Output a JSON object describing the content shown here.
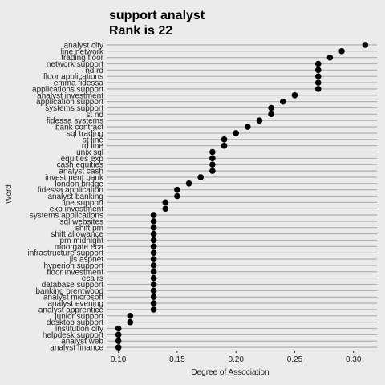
{
  "chart_data": {
    "type": "scatter",
    "title": "support analyst",
    "subtitle": "Rank is 22",
    "xlabel": "Degree of Association",
    "ylabel": "Word",
    "xlim": [
      0.09,
      0.32
    ],
    "xticks": [
      "0.10",
      "0.15",
      "0.20",
      "0.25",
      "0.30"
    ],
    "xtick_values": [
      0.1,
      0.15,
      0.2,
      0.25,
      0.3
    ],
    "grid": true,
    "point_color": "#000000",
    "background": "#ebebeb",
    "categories": [
      "analyst city",
      "line network",
      "trading floor",
      "network support",
      "nd rd",
      "floor applications",
      "emma fidessa",
      "applications support",
      "analyst investment",
      "application support",
      "systems support",
      "st nd",
      "fidessa systems",
      "bank contract",
      "sql trading",
      "st line",
      "rd line",
      "unix sql",
      "equities exp",
      "cash equities",
      "analyst cash",
      "investment bank",
      "london bridge",
      "fidessa application",
      "analyst banking",
      "line support",
      "exp investment",
      "systems applications",
      "sql websites",
      "shift pm",
      "shift allowance",
      "pm midnight",
      "moorgate eca",
      "infrastructure support",
      "jis aspnet",
      "hyperion support",
      "floor investment",
      "eca rs",
      "database support",
      "banking brentwood",
      "analyst microsoft",
      "analyst evening",
      "analyst apprentice",
      "junior support",
      "desktop support",
      "institution city",
      "helpdesk support",
      "analyst web",
      "analyst finance"
    ],
    "values": [
      0.31,
      0.29,
      0.28,
      0.27,
      0.27,
      0.27,
      0.27,
      0.27,
      0.25,
      0.24,
      0.23,
      0.23,
      0.22,
      0.21,
      0.2,
      0.19,
      0.19,
      0.18,
      0.18,
      0.18,
      0.18,
      0.17,
      0.16,
      0.15,
      0.15,
      0.14,
      0.14,
      0.13,
      0.13,
      0.13,
      0.13,
      0.13,
      0.13,
      0.13,
      0.13,
      0.13,
      0.13,
      0.13,
      0.13,
      0.13,
      0.13,
      0.13,
      0.13,
      0.11,
      0.11,
      0.1,
      0.1,
      0.1,
      0.1
    ]
  }
}
